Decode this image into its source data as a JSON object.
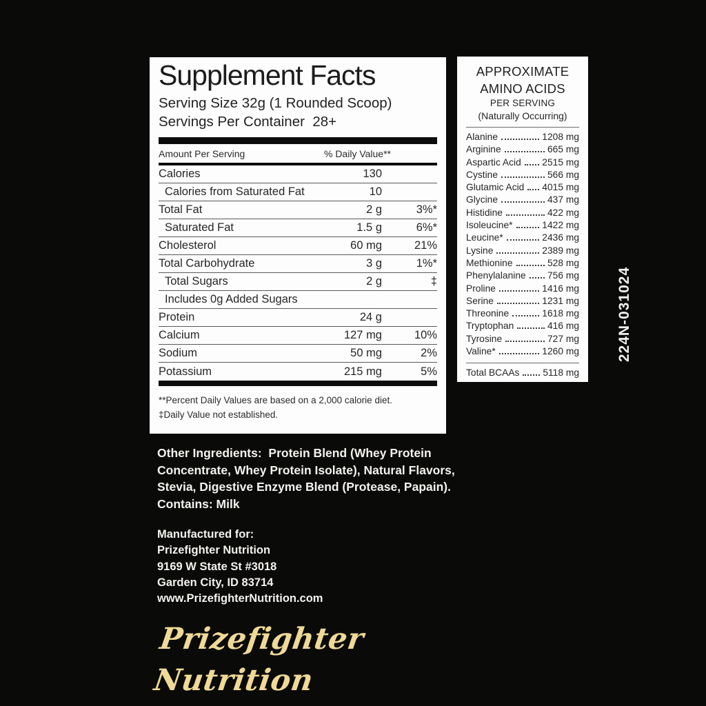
{
  "colors": {
    "background": "#0a0a08",
    "panel": "#fdfdfd",
    "gold": "#efd996",
    "white_text": "#f4f2ee"
  },
  "supplement_facts": {
    "title": "Supplement Facts",
    "serving_size": "Serving Size 32g (1 Rounded Scoop)",
    "servings_per_container": "Servings Per Container  28+",
    "column_headers": {
      "amount": "Amount Per Serving",
      "daily_value": "% Daily Value**"
    },
    "rows": [
      {
        "label": "Calories",
        "amount": "130",
        "dv": "",
        "indent": false
      },
      {
        "label": "Calories from Saturated Fat",
        "amount": "10",
        "dv": "",
        "indent": true
      },
      {
        "label": "Total Fat",
        "amount": "2 g",
        "dv": "3%*",
        "indent": false
      },
      {
        "label": "Saturated Fat",
        "amount": "1.5 g",
        "dv": "6%*",
        "indent": true
      },
      {
        "label": "Cholesterol",
        "amount": "60 mg",
        "dv": "21%",
        "indent": false
      },
      {
        "label": "Total Carbohydrate",
        "amount": "3 g",
        "dv": "1%*",
        "indent": false
      },
      {
        "label": "Total Sugars",
        "amount": "2 g",
        "dv": "‡",
        "indent": true
      },
      {
        "label": "Includes 0g Added Sugars",
        "amount": "",
        "dv": "",
        "indent": true
      },
      {
        "label": "Protein",
        "amount": "24 g",
        "dv": "",
        "indent": false
      },
      {
        "label": "Calcium",
        "amount": "127 mg",
        "dv": "10%",
        "indent": false
      },
      {
        "label": "Sodium",
        "amount": "50 mg",
        "dv": "2%",
        "indent": false
      },
      {
        "label": "Potassium",
        "amount": "215 mg",
        "dv": "5%",
        "indent": false
      }
    ],
    "footnotes": [
      "**Percent Daily Values are based on a 2,000 calorie diet.",
      "‡Daily Value not established."
    ]
  },
  "amino_acids": {
    "title_line1": "APPROXIMATE",
    "title_line2": "AMINO ACIDS",
    "subtitle1": "PER SERVING",
    "subtitle2": "(Naturally Occurring)",
    "items": [
      {
        "name": "Alanine",
        "amount": "1208 mg"
      },
      {
        "name": "Arginine",
        "amount": "665 mg"
      },
      {
        "name": "Aspartic Acid",
        "amount": "2515 mg"
      },
      {
        "name": "Cystine",
        "amount": "566 mg"
      },
      {
        "name": "Glutamic Acid",
        "amount": "4015 mg"
      },
      {
        "name": "Glycine",
        "amount": "437 mg"
      },
      {
        "name": "Histidine",
        "amount": "422 mg"
      },
      {
        "name": "Isoleucine*",
        "amount": "1422 mg"
      },
      {
        "name": "Leucine*",
        "amount": "2436 mg"
      },
      {
        "name": "Lysine",
        "amount": "2389 mg"
      },
      {
        "name": "Methionine",
        "amount": "528 mg"
      },
      {
        "name": "Phenylalanine",
        "amount": "756 mg"
      },
      {
        "name": "Proline",
        "amount": "1416 mg"
      },
      {
        "name": "Serine",
        "amount": "1231 mg"
      },
      {
        "name": "Threonine",
        "amount": "1618 mg"
      },
      {
        "name": "Tryptophan",
        "amount": "416 mg"
      },
      {
        "name": "Tyrosine",
        "amount": "727 mg"
      },
      {
        "name": "Valine*",
        "amount": "1260 mg"
      }
    ],
    "total": {
      "name": "Total BCAAs",
      "amount": "5118 mg"
    }
  },
  "other_ingredients": {
    "lines": [
      "Other Ingredients:  Protein Blend (Whey Protein",
      "Concentrate, Whey Protein Isolate), Natural Flavors,",
      "Stevia, Digestive Enzyme Blend (Protease, Papain).",
      "Contains: Milk"
    ]
  },
  "manufactured": {
    "lines": [
      "Manufactured for:",
      "Prizefighter Nutrition",
      "9169 W State St #3018",
      "Garden City, ID 83714",
      "www.PrizefighterNutrition.com"
    ]
  },
  "logo_text": "Prizefighter Nutrition",
  "product_code": "224N-031024"
}
